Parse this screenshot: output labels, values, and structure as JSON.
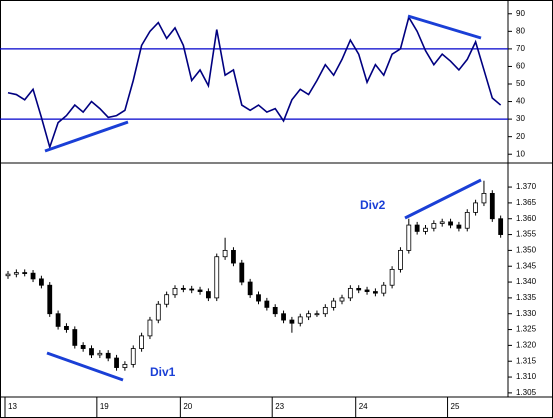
{
  "chart_data": [
    {
      "type": "line",
      "color": "#000080",
      "ylim": [
        5,
        95
      ],
      "yticks": [
        10,
        20,
        30,
        40,
        50,
        60,
        70,
        80,
        90
      ],
      "reference_lines": [
        30,
        70
      ],
      "reference_color": "#0000cc",
      "values": [
        45,
        44,
        41,
        47,
        31,
        14,
        28,
        32,
        38,
        34,
        40,
        36,
        31,
        32,
        35,
        52,
        72,
        80,
        85,
        76,
        82,
        72,
        52,
        58,
        49,
        81,
        55,
        58,
        38,
        35,
        38,
        34,
        36,
        29,
        41,
        47,
        44,
        52,
        61,
        55,
        64,
        75,
        67,
        51,
        61,
        55,
        67,
        70,
        88,
        80,
        69,
        61,
        67,
        63,
        58,
        64,
        74,
        58,
        42,
        38
      ]
    },
    {
      "type": "candlestick",
      "up_color": "#ffffff",
      "down_color": "#000000",
      "ylim": [
        1.3037,
        1.3776
      ],
      "yticks": [
        {
          "value": 1.305,
          "label": "1.305"
        },
        {
          "value": 1.31,
          "label": "1.310"
        },
        {
          "value": 1.315,
          "label": "1.315"
        },
        {
          "value": 1.32,
          "label": "1.320"
        },
        {
          "value": 1.325,
          "label": "1.325"
        },
        {
          "value": 1.33,
          "label": "1.330"
        },
        {
          "value": 1.335,
          "label": "1.335"
        },
        {
          "value": 1.34,
          "label": "1.340"
        },
        {
          "value": 1.345,
          "label": "1.345"
        },
        {
          "value": 1.35,
          "label": "1.350"
        },
        {
          "value": 1.355,
          "label": "1.355"
        },
        {
          "value": 1.36,
          "label": "1.360"
        },
        {
          "value": 1.365,
          "label": "1.365"
        },
        {
          "value": 1.37,
          "label": "1.370"
        }
      ],
      "annotations": [
        "Div1",
        "Div2"
      ],
      "categories": [
        "13",
        null,
        null,
        null,
        null,
        null,
        null,
        null,
        null,
        null,
        null,
        "19",
        null,
        null,
        null,
        null,
        null,
        null,
        null,
        null,
        null,
        "20",
        null,
        null,
        null,
        null,
        null,
        null,
        null,
        null,
        null,
        null,
        "23",
        null,
        null,
        null,
        null,
        null,
        null,
        null,
        null,
        null,
        "24",
        null,
        null,
        null,
        null,
        null,
        null,
        null,
        null,
        null,
        null,
        "25",
        null,
        null,
        null,
        null,
        null,
        null
      ],
      "open": [
        1.342,
        1.3425,
        1.343,
        1.3428,
        1.341,
        1.339,
        1.33,
        1.326,
        1.325,
        1.32,
        1.319,
        1.317,
        1.3175,
        1.316,
        1.313,
        1.314,
        1.319,
        1.323,
        1.328,
        1.333,
        1.336,
        1.338,
        1.3378,
        1.3375,
        1.337,
        1.335,
        1.348,
        1.35,
        1.346,
        1.34,
        1.336,
        1.334,
        1.332,
        1.33,
        1.328,
        1.327,
        1.329,
        1.33,
        1.33,
        1.332,
        1.334,
        1.335,
        1.338,
        1.3375,
        1.337,
        1.3365,
        1.339,
        1.344,
        1.35,
        1.358,
        1.356,
        1.357,
        1.3585,
        1.359,
        1.358,
        1.357,
        1.362,
        1.365,
        1.368,
        1.36
      ],
      "high": [
        1.3435,
        1.344,
        1.344,
        1.3438,
        1.342,
        1.34,
        1.331,
        1.327,
        1.326,
        1.321,
        1.32,
        1.3185,
        1.3185,
        1.317,
        1.315,
        1.32,
        1.324,
        1.329,
        1.334,
        1.337,
        1.339,
        1.339,
        1.3388,
        1.3385,
        1.338,
        1.349,
        1.354,
        1.351,
        1.347,
        1.341,
        1.337,
        1.335,
        1.333,
        1.331,
        1.329,
        1.33,
        1.331,
        1.331,
        1.333,
        1.335,
        1.336,
        1.339,
        1.339,
        1.3385,
        1.338,
        1.34,
        1.345,
        1.351,
        1.36,
        1.359,
        1.358,
        1.3595,
        1.36,
        1.36,
        1.359,
        1.363,
        1.366,
        1.372,
        1.369,
        1.361
      ],
      "low": [
        1.341,
        1.3415,
        1.3418,
        1.34,
        1.338,
        1.329,
        1.325,
        1.324,
        1.319,
        1.318,
        1.316,
        1.316,
        1.315,
        1.312,
        1.312,
        1.313,
        1.318,
        1.322,
        1.327,
        1.332,
        1.335,
        1.3368,
        1.3365,
        1.336,
        1.334,
        1.334,
        1.347,
        1.345,
        1.339,
        1.335,
        1.333,
        1.331,
        1.329,
        1.327,
        1.324,
        1.326,
        1.328,
        1.329,
        1.329,
        1.331,
        1.333,
        1.334,
        1.3365,
        1.336,
        1.3355,
        1.3355,
        1.338,
        1.343,
        1.349,
        1.355,
        1.355,
        1.356,
        1.3575,
        1.357,
        1.356,
        1.356,
        1.361,
        1.364,
        1.359,
        1.354
      ],
      "close": [
        1.3425,
        1.343,
        1.3428,
        1.341,
        1.339,
        1.33,
        1.326,
        1.325,
        1.32,
        1.319,
        1.317,
        1.3175,
        1.316,
        1.313,
        1.314,
        1.319,
        1.323,
        1.328,
        1.333,
        1.336,
        1.338,
        1.3378,
        1.3375,
        1.337,
        1.335,
        1.348,
        1.35,
        1.346,
        1.34,
        1.336,
        1.334,
        1.332,
        1.33,
        1.328,
        1.327,
        1.329,
        1.33,
        1.33,
        1.332,
        1.334,
        1.335,
        1.338,
        1.3375,
        1.337,
        1.3365,
        1.339,
        1.344,
        1.35,
        1.358,
        1.356,
        1.357,
        1.3585,
        1.359,
        1.358,
        1.357,
        1.362,
        1.365,
        1.368,
        1.36,
        1.355
      ]
    }
  ]
}
